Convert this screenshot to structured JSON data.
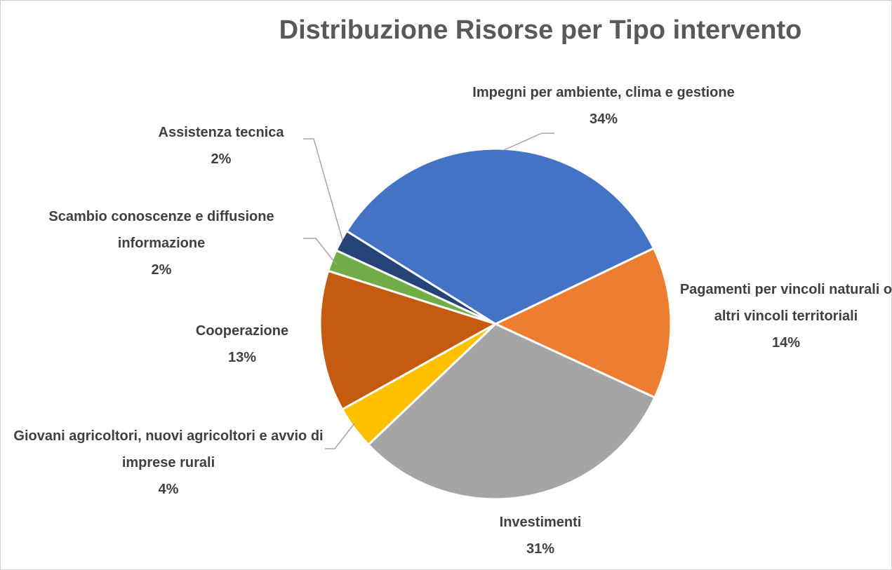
{
  "chart_data": {
    "type": "pie",
    "title": "Distribuzione Risorse per Tipo intervento",
    "categories": [
      "Impegni per ambiente, clima e gestione",
      "Pagamenti per vincoli naturali o altri vincoli territoriali",
      "Investimenti",
      "Giovani agricoltori, nuovi agricoltori e avvio di imprese rurali",
      "Cooperazione",
      "Scambio conoscenze e diffusione informazione",
      "Assistenza tecnica"
    ],
    "values": [
      34,
      14,
      31,
      4,
      13,
      2,
      2
    ],
    "value_labels": [
      "34%",
      "14%",
      "31%",
      "4%",
      "13%",
      "2%",
      "2%"
    ],
    "colors": [
      "#4472c4",
      "#ed7d31",
      "#a5a5a5",
      "#ffc000",
      "#c55a11",
      "#70ad47",
      "#264478"
    ]
  }
}
